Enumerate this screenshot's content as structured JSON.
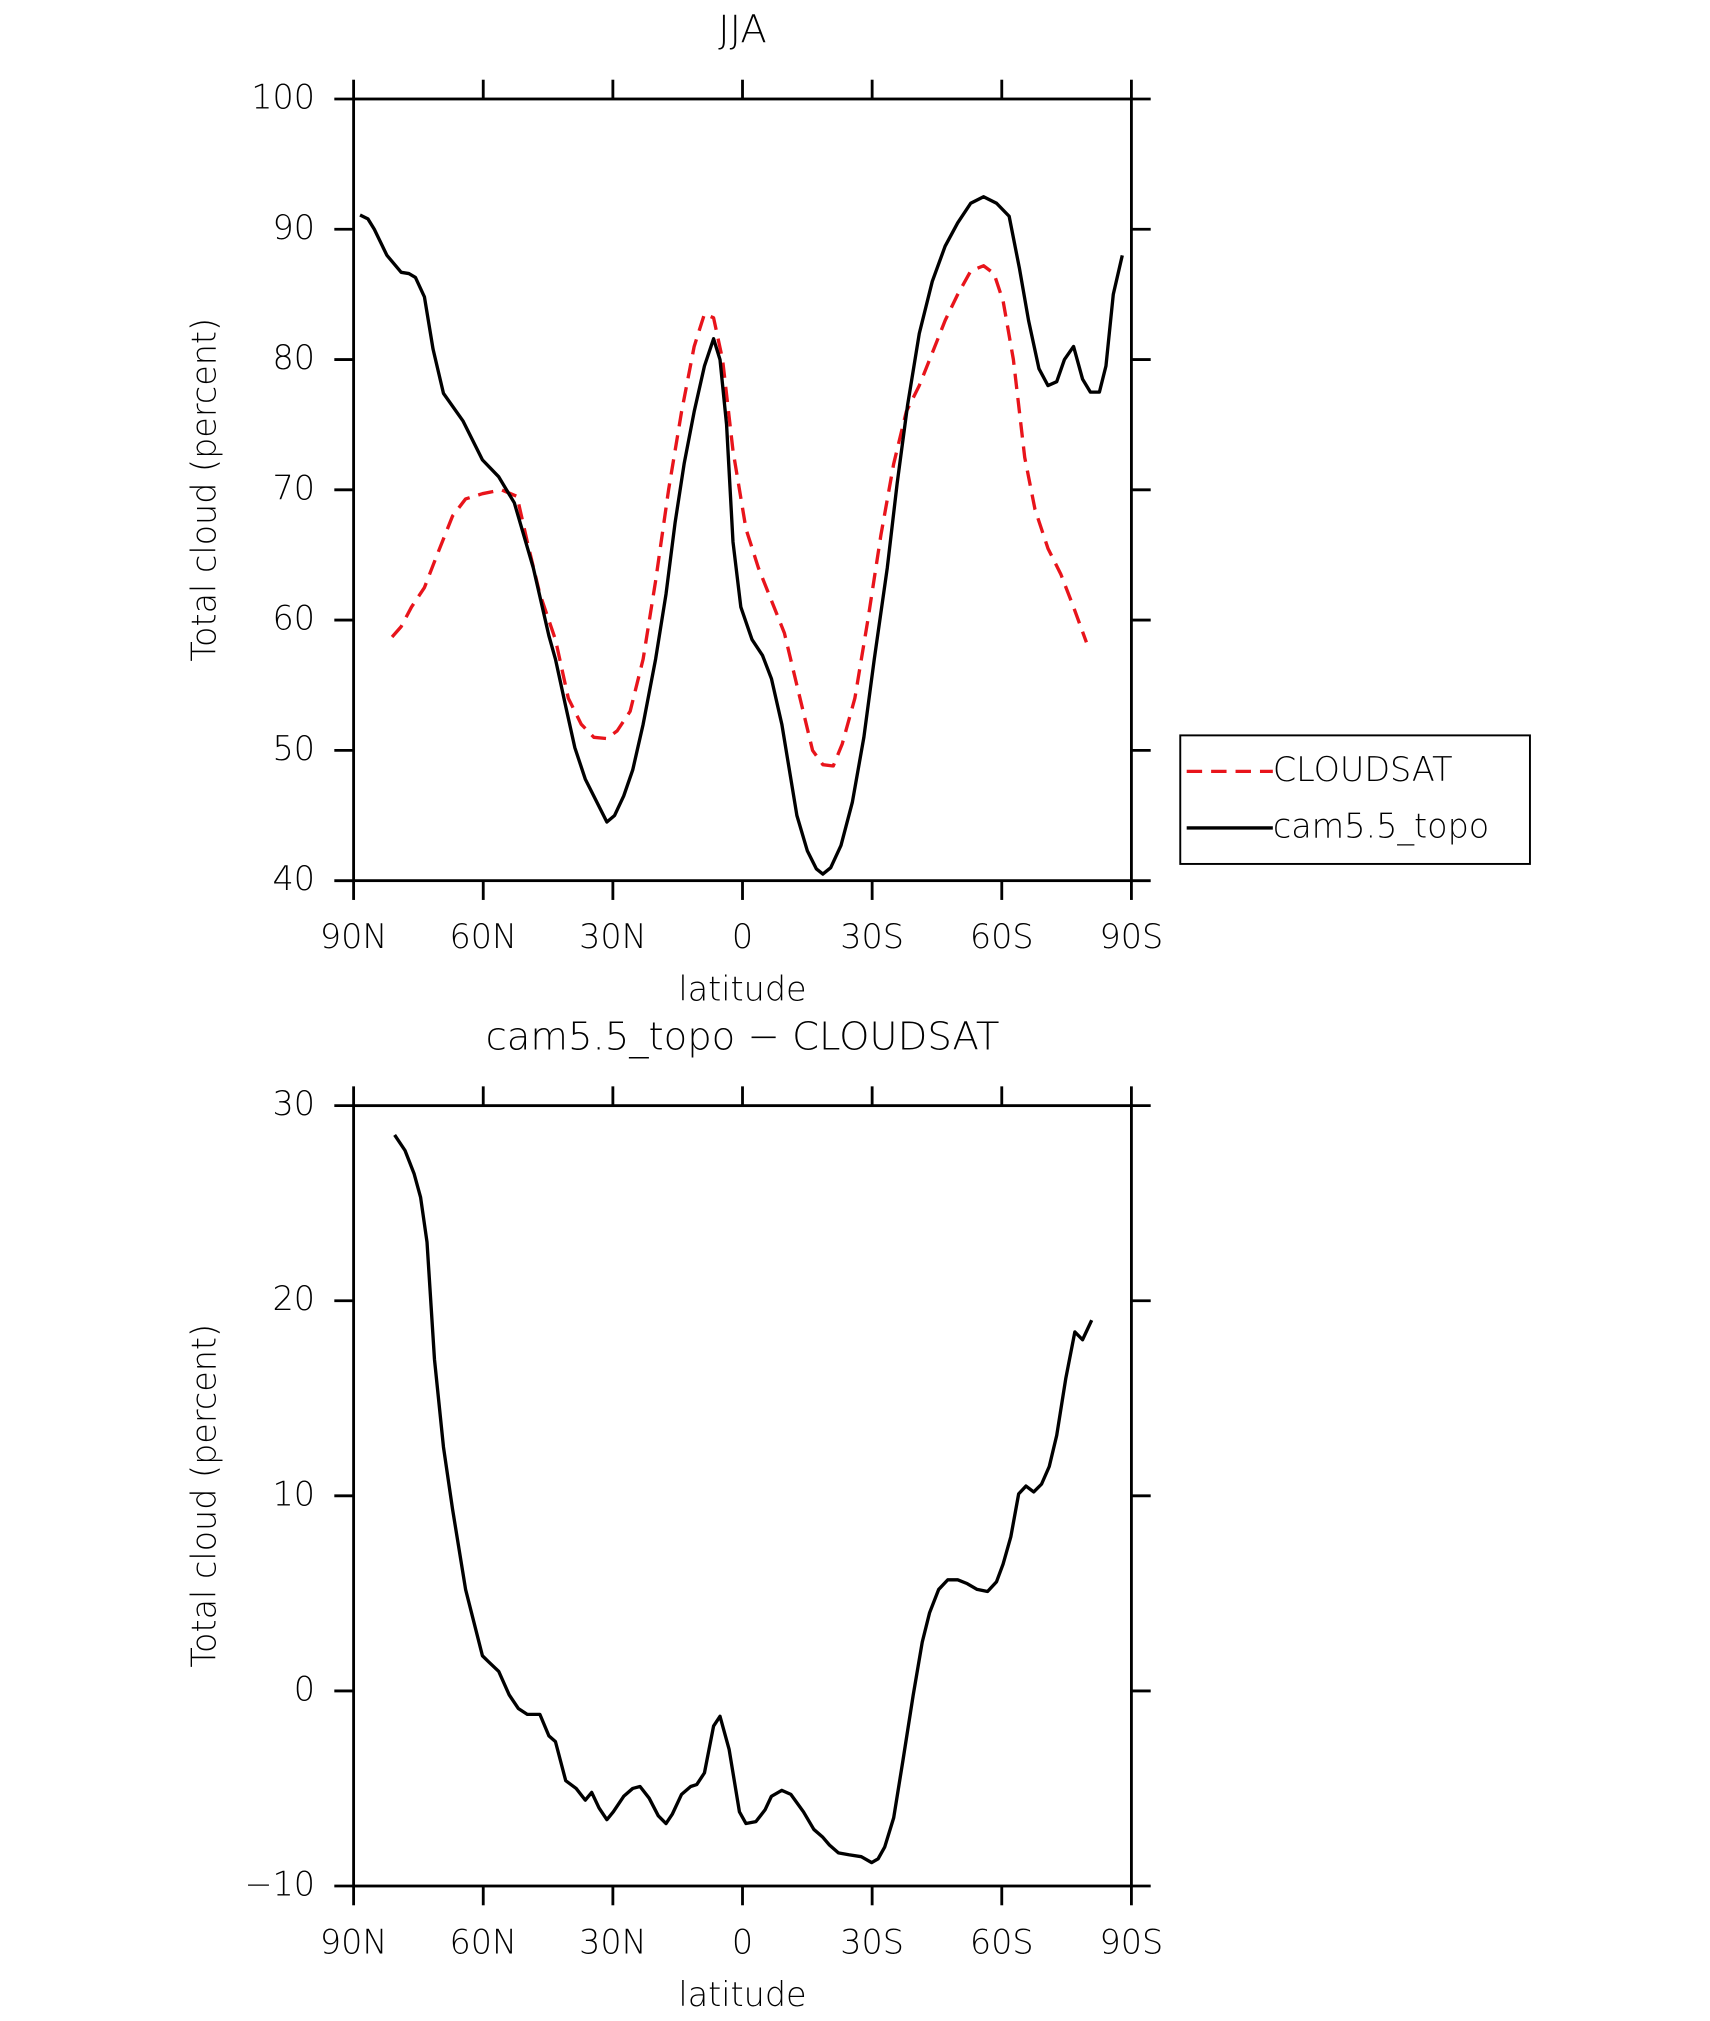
{
  "chart_data": [
    {
      "type": "line",
      "title": "JJA",
      "xlabel": "latitude",
      "ylabel": "Total cloud (percent)",
      "xlim": [
        90,
        -90
      ],
      "xticks": [
        {
          "value": 90,
          "label": "90N"
        },
        {
          "value": 60,
          "label": "60N"
        },
        {
          "value": 30,
          "label": "30N"
        },
        0,
        {
          "value": -30,
          "label": "30S"
        },
        {
          "value": -60,
          "label": "60S"
        },
        {
          "value": -90,
          "label": "90S"
        }
      ],
      "ylim": [
        40,
        100
      ],
      "yticks": [
        40,
        50,
        60,
        70,
        80,
        90,
        100
      ],
      "legend": "right",
      "series": [
        {
          "name": "CLOUDSAT",
          "color": "#e8141b",
          "dashed": true,
          "x": [
            81.1,
            79,
            76.6,
            73.6,
            70.7,
            67.1,
            64.1,
            60.2,
            55.8,
            52.2,
            49.8,
            46.9,
            43.3,
            40.3,
            37.3,
            34.4,
            31.4,
            29,
            26,
            23,
            20.1,
            17.1,
            14.1,
            11.2,
            8.8,
            6.7,
            4.6,
            2.2,
            -0.8,
            -3.7,
            -6.7,
            -9.7,
            -12.6,
            -16.2,
            -18.6,
            -21,
            -23.1,
            -26,
            -29,
            -32,
            -35,
            -37.9,
            -40.9,
            -43.9,
            -46.9,
            -49.8,
            -52.8,
            -55.8,
            -58.2,
            -60.3,
            -62.7,
            -65.3,
            -67.7,
            -70.7,
            -73.7,
            -76.6,
            -79.6
          ],
          "values": [
            58.7,
            59.5,
            61,
            62.5,
            65,
            68,
            69.3,
            69.7,
            70,
            69.5,
            66,
            62,
            58.5,
            54,
            52,
            51,
            50.9,
            51.5,
            53,
            57,
            63,
            70,
            76,
            81,
            83.5,
            83.2,
            80,
            73,
            67,
            64,
            61.5,
            59,
            55,
            50,
            48.9,
            48.8,
            50.5,
            54,
            60,
            66.5,
            72,
            76,
            78,
            80.5,
            83,
            85,
            86.8,
            87.2,
            86.6,
            84.5,
            80,
            72.5,
            68.5,
            65.5,
            63.5,
            61,
            58.3
          ]
        },
        {
          "name": "cam5.5_topo",
          "color": "#000000",
          "dashed": false,
          "x": [
            88.5,
            86.7,
            85.2,
            82.3,
            79,
            77.2,
            75.7,
            73.6,
            71.6,
            69.2,
            64.7,
            60.2,
            56.4,
            52.8,
            48.4,
            44.8,
            43.3,
            41,
            38.8,
            36.4,
            31.4,
            29.6,
            27.5,
            25.4,
            23,
            20.1,
            17.7,
            15.6,
            13.5,
            11.2,
            8.8,
            6.7,
            5.2,
            3.7,
            2.2,
            0.4,
            -2.2,
            -4.6,
            -6.7,
            -9.1,
            -12.6,
            -15,
            -17.1,
            -18.6,
            -20.4,
            -22.8,
            -25.4,
            -28.1,
            -30.5,
            -33.5,
            -35.8,
            -38.2,
            -40.9,
            -43.9,
            -46.9,
            -49.8,
            -52.8,
            -55.8,
            -58.8,
            -61.7,
            -64.1,
            -66.2,
            -68.6,
            -70.7,
            -72.7,
            -74.5,
            -76.6,
            -78.7,
            -80.5,
            -82.6,
            -84.1,
            -85.8,
            -87.9
          ],
          "values": [
            91.1,
            90.8,
            90,
            88,
            86.7,
            86.6,
            86.3,
            84.8,
            80.8,
            77.4,
            75.3,
            72.3,
            71,
            69,
            64,
            58.8,
            57,
            53.5,
            50.2,
            47.8,
            44.5,
            45,
            46.5,
            48.5,
            52,
            57,
            62,
            67.5,
            72,
            76,
            79.5,
            81.6,
            80,
            75,
            66,
            61,
            58.5,
            57.3,
            55.5,
            52,
            45,
            42.3,
            40.9,
            40.5,
            41,
            42.7,
            46,
            51,
            57,
            64,
            70.5,
            76.5,
            82,
            86,
            88.7,
            90.5,
            92,
            92.5,
            92,
            91,
            87,
            83,
            79.3,
            78,
            78.3,
            80,
            81,
            78.5,
            77.5,
            77.5,
            79.5,
            85,
            88
          ]
        }
      ]
    },
    {
      "type": "line",
      "title": "cam5.5_topo − CLOUDSAT",
      "xlabel": "latitude",
      "ylabel": "Total cloud (percent)",
      "xlim": [
        90,
        -90
      ],
      "xticks": [
        {
          "value": 90,
          "label": "90N"
        },
        {
          "value": 60,
          "label": "60N"
        },
        {
          "value": 30,
          "label": "30N"
        },
        0,
        {
          "value": -30,
          "label": "30S"
        },
        {
          "value": -60,
          "label": "60S"
        },
        {
          "value": -90,
          "label": "90S"
        }
      ],
      "ylim": [
        -10,
        30
      ],
      "yticks": [
        {
          "value": -10,
          "label": "−10"
        },
        0,
        10,
        20,
        30
      ],
      "series": [
        {
          "color": "#000000",
          "dashed": false,
          "x": [
            80.5,
            78.1,
            76,
            74.5,
            73,
            71.3,
            69.2,
            67.1,
            64.1,
            60.2,
            58.8,
            56.4,
            54,
            51.9,
            49.8,
            46.9,
            44.8,
            43.3,
            40.9,
            38.5,
            36.4,
            34.9,
            33.2,
            31.4,
            29.9,
            27.5,
            25.4,
            23.7,
            21.6,
            19.5,
            17.7,
            16.2,
            14.1,
            12,
            10.6,
            8.8,
            6.7,
            5.2,
            3.1,
            0.7,
            -0.8,
            -3.1,
            -5.2,
            -6.7,
            -9.1,
            -11.2,
            -14.1,
            -16.5,
            -18.6,
            -20.1,
            -22.2,
            -24.6,
            -27.5,
            -29.9,
            -31.4,
            -32.9,
            -35,
            -37.1,
            -39.5,
            -41.6,
            -43.3,
            -45.4,
            -47.5,
            -49.8,
            -52,
            -54.3,
            -56.7,
            -58.8,
            -60.3,
            -62.1,
            -63.9,
            -65.6,
            -67.4,
            -69.2,
            -71,
            -72.7,
            -74.8,
            -76.9,
            -78.7,
            -80.8
          ],
          "values": [
            28.5,
            27.7,
            26.5,
            25.3,
            23,
            17,
            12.5,
            9.3,
            5.2,
            1.8,
            1.5,
            1,
            -0.2,
            -0.9,
            -1.2,
            -1.2,
            -2.3,
            -2.6,
            -4.6,
            -5,
            -5.6,
            -5.2,
            -6,
            -6.6,
            -6.2,
            -5.4,
            -5,
            -4.9,
            -5.5,
            -6.4,
            -6.8,
            -6.3,
            -5.3,
            -4.9,
            -4.8,
            -4.2,
            -1.8,
            -1.3,
            -3,
            -6.2,
            -6.8,
            -6.7,
            -6.1,
            -5.4,
            -5.1,
            -5.3,
            -6.2,
            -7.1,
            -7.5,
            -7.9,
            -8.3,
            -8.4,
            -8.5,
            -8.8,
            -8.6,
            -8,
            -6.5,
            -3.6,
            -0.2,
            2.5,
            4,
            5.2,
            5.7,
            5.7,
            5.5,
            5.2,
            5.1,
            5.6,
            6.5,
            7.9,
            10.1,
            10.5,
            10.2,
            10.6,
            11.5,
            13.1,
            16,
            18.4,
            18,
            19
          ]
        }
      ]
    }
  ]
}
